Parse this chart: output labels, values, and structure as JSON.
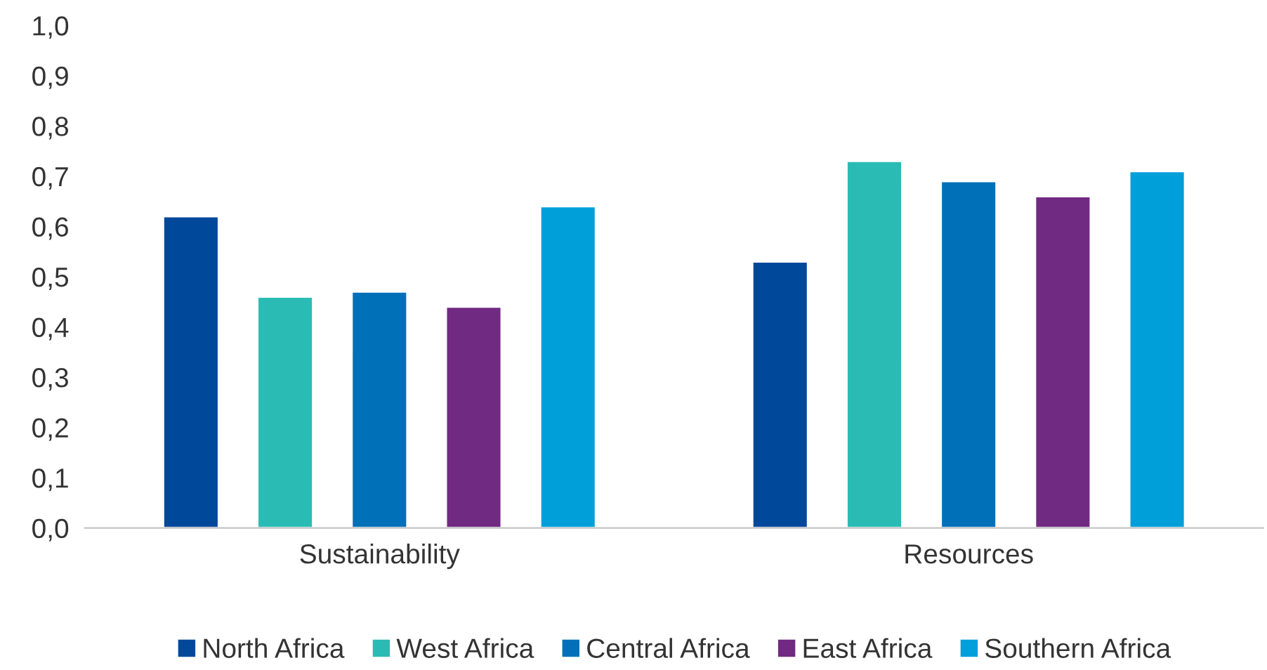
{
  "chart_data": {
    "type": "bar",
    "categories": [
      "Sustainability",
      "Resources"
    ],
    "series": [
      {
        "name": "North Africa",
        "color": "#00489a",
        "values": [
          0.62,
          0.53
        ]
      },
      {
        "name": "West Africa",
        "color": "#2abcb4",
        "values": [
          0.46,
          0.73
        ]
      },
      {
        "name": "Central Africa",
        "color": "#0070b8",
        "values": [
          0.47,
          0.69
        ]
      },
      {
        "name": "East Africa",
        "color": "#702a82",
        "values": [
          0.44,
          0.66
        ]
      },
      {
        "name": "Southern Africa",
        "color": "#009fda",
        "values": [
          0.64,
          0.71
        ]
      }
    ],
    "ylim": [
      0,
      1
    ],
    "yticks": [
      {
        "value": 0,
        "label": "0,0"
      },
      {
        "value": 0.1,
        "label": "0,1"
      },
      {
        "value": 0.2,
        "label": "0,2"
      },
      {
        "value": 0.3,
        "label": "0,3"
      },
      {
        "value": 0.4,
        "label": "0,4"
      },
      {
        "value": 0.5,
        "label": "0,5"
      },
      {
        "value": 0.6,
        "label": "0,6"
      },
      {
        "value": 0.7,
        "label": "0,7"
      },
      {
        "value": 0.8,
        "label": "0,8"
      },
      {
        "value": 0.9,
        "label": "0,9"
      },
      {
        "value": 1,
        "label": "1,0"
      }
    ],
    "grid": false,
    "legend": "bottom"
  }
}
